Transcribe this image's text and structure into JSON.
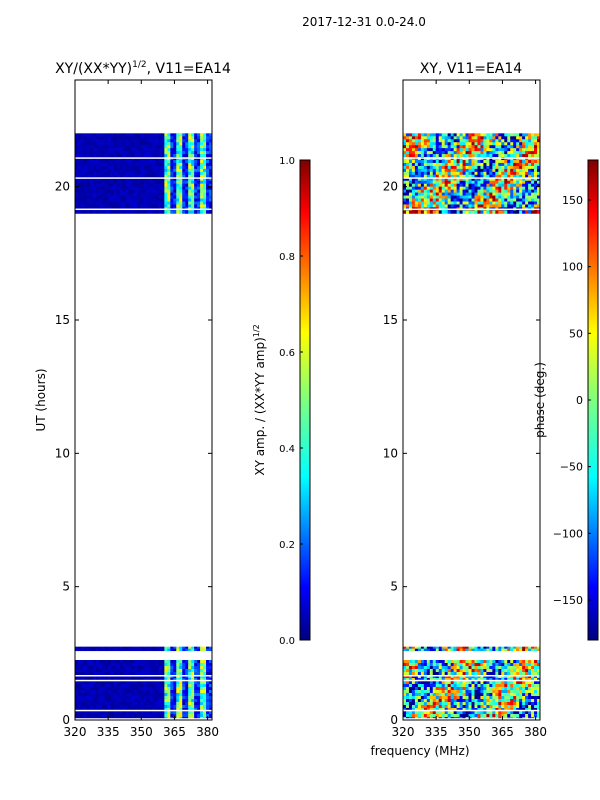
{
  "suptitle": "2017-12-31 0.0-24.0",
  "xlabel": "frequency (MHz)",
  "colors": {
    "jet": [
      "#00007f",
      "#0000ff",
      "#007fff",
      "#00ffff",
      "#7fff7f",
      "#ffff00",
      "#ff7f00",
      "#ff0000",
      "#7f0000"
    ],
    "dark_blue": "#00008a",
    "white_gap": "#ffffff"
  },
  "chart_data": [
    {
      "type": "heatmap",
      "title_main": "XY/(XX*YY)",
      "title_exp": "1/2",
      "title_suffix": ", V11=EA14",
      "xlabel": "",
      "ylabel": "UT (hours)",
      "xlim": [
        320,
        382
      ],
      "ylim": [
        0,
        24
      ],
      "xticks": [
        320,
        335,
        350,
        365,
        380
      ],
      "yticks": [
        0,
        5,
        10,
        15,
        20
      ],
      "data_blocks_ut": [
        [
          19.0,
          22.0
        ],
        [
          0.0,
          2.25
        ],
        [
          2.6,
          2.75
        ]
      ],
      "colorbar": {
        "label": "XY amp. / (XX*YY amp)^1/2",
        "label_main": "XY amp. / (XX*YY amp)",
        "label_exp": "1/2",
        "range": [
          0.0,
          1.0
        ],
        "ticks": [
          "0.0",
          "0.2",
          "0.4",
          "0.6",
          "0.8",
          "1.0"
        ],
        "tick_values": [
          0.0,
          0.2,
          0.4,
          0.6,
          0.8,
          1.0
        ]
      }
    },
    {
      "type": "heatmap",
      "title": "XY, V11=EA14",
      "xlabel": "frequency (MHz)",
      "ylabel": "",
      "xlim": [
        320,
        382
      ],
      "ylim": [
        0,
        24
      ],
      "xticks": [
        320,
        335,
        350,
        365,
        380
      ],
      "yticks": [
        0,
        5,
        10,
        15,
        20
      ],
      "data_blocks_ut": [
        [
          19.0,
          22.0
        ],
        [
          0.0,
          2.25
        ],
        [
          2.6,
          2.75
        ]
      ],
      "colorbar": {
        "label": "phase (deg.)",
        "range": [
          -180,
          180
        ],
        "ticks": [
          "−150",
          "−100",
          "−50",
          "0",
          "50",
          "100",
          "150"
        ],
        "tick_values": [
          -150,
          -100,
          -50,
          0,
          50,
          100,
          150
        ]
      }
    }
  ]
}
